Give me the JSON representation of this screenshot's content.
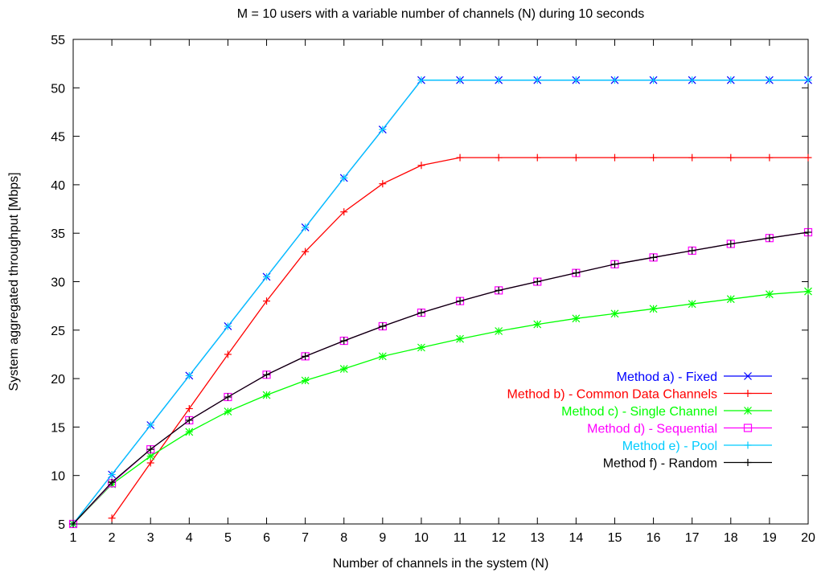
{
  "chart_data": {
    "type": "line",
    "title": "M = 10 users with a variable number of channels (N) during 10 seconds",
    "xlabel": "Number of channels in the system (N)",
    "ylabel": "System aggregated throughput [Mbps]",
    "xlim": [
      1,
      20
    ],
    "ylim": [
      5,
      55
    ],
    "xticks": [
      1,
      2,
      3,
      4,
      5,
      6,
      7,
      8,
      9,
      10,
      11,
      12,
      13,
      14,
      15,
      16,
      17,
      18,
      19,
      20
    ],
    "yticks": [
      5,
      10,
      15,
      20,
      25,
      30,
      35,
      40,
      45,
      50,
      55
    ],
    "grid": false,
    "legend_position": "right",
    "x": [
      1,
      2,
      3,
      4,
      5,
      6,
      7,
      8,
      9,
      10,
      11,
      12,
      13,
      14,
      15,
      16,
      17,
      18,
      19,
      20
    ],
    "series": [
      {
        "name": "Method a) - Fixed",
        "color": "#0000ff",
        "marker": "x",
        "values": [
          5.0,
          10.1,
          15.2,
          20.3,
          25.4,
          30.5,
          35.6,
          40.7,
          45.7,
          50.8,
          50.8,
          50.8,
          50.8,
          50.8,
          50.8,
          50.8,
          50.8,
          50.8,
          50.8,
          50.8
        ]
      },
      {
        "name": "Method b) - Common Data Channels",
        "color": "#ff0000",
        "marker": "plus",
        "values": [
          null,
          5.6,
          11.3,
          16.9,
          22.5,
          28.0,
          33.1,
          37.2,
          40.1,
          42.0,
          42.8,
          42.8,
          42.8,
          42.8,
          42.8,
          42.8,
          42.8,
          42.8,
          42.8,
          42.8
        ]
      },
      {
        "name": "Method c) - Single Channel",
        "color": "#00ff00",
        "marker": "star",
        "values": [
          5.0,
          9.1,
          12.0,
          14.5,
          16.6,
          18.3,
          19.8,
          21.0,
          22.3,
          23.2,
          24.1,
          24.9,
          25.6,
          26.2,
          26.7,
          27.2,
          27.7,
          28.2,
          28.7,
          29.0
        ]
      },
      {
        "name": "Method d) - Sequential",
        "color": "#ff00ff",
        "marker": "square",
        "values": [
          5.0,
          9.2,
          12.7,
          15.7,
          18.1,
          20.4,
          22.3,
          23.9,
          25.4,
          26.8,
          28.0,
          29.1,
          30.0,
          30.9,
          31.8,
          32.5,
          33.2,
          33.9,
          34.5,
          35.1
        ]
      },
      {
        "name": "Method e) - Pool",
        "color": "#00ccff",
        "marker": "plus",
        "values": [
          5.0,
          10.1,
          15.2,
          20.3,
          25.4,
          30.5,
          35.6,
          40.7,
          45.7,
          50.8,
          50.8,
          50.8,
          50.8,
          50.8,
          50.8,
          50.8,
          50.8,
          50.8,
          50.8,
          50.8
        ]
      },
      {
        "name": "Method f) - Random",
        "color": "#000000",
        "marker": "plus",
        "values": [
          5.0,
          9.3,
          12.7,
          15.7,
          18.1,
          20.4,
          22.3,
          23.9,
          25.4,
          26.8,
          28.0,
          29.1,
          30.0,
          30.9,
          31.8,
          32.5,
          33.2,
          33.9,
          34.5,
          35.1
        ]
      }
    ]
  }
}
